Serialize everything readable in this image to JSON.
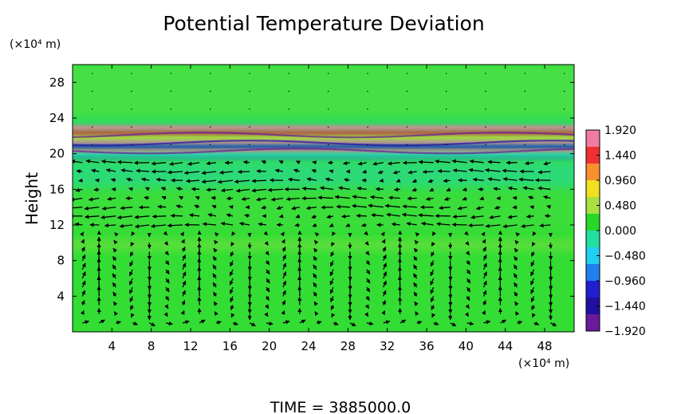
{
  "chart_data": {
    "type": "heatmap",
    "title": "Potential Temperature Deviation",
    "ylabel": "Height",
    "y_unit": "(×10⁴ m)",
    "x_unit": "(×10⁴ m)",
    "xlim": [
      0,
      51
    ],
    "ylim": [
      0,
      30
    ],
    "x_ticks": [
      4,
      8,
      12,
      16,
      20,
      24,
      28,
      32,
      36,
      40,
      44,
      48
    ],
    "y_ticks": [
      4,
      8,
      12,
      16,
      20,
      24,
      28
    ],
    "colorbar": {
      "ticks": [
        1.92,
        1.44,
        0.96,
        0.48,
        0.0,
        -0.48,
        -0.96,
        -1.44,
        -1.92
      ],
      "tick_labels": [
        "1.920",
        "1.440",
        "0.960",
        "0.480",
        "0.000",
        "−0.480",
        "−0.960",
        "−1.440",
        "−1.920"
      ],
      "range": [
        -1.92,
        1.92
      ],
      "colors_top_to_bottom": [
        "#f07ca0",
        "#ee3030",
        "#f89030",
        "#f0e020",
        "#a8e040",
        "#28d828",
        "#20e0a0",
        "#20d0f0",
        "#2080f0",
        "#2020d0",
        "#2010a0",
        "#6a1a9a"
      ]
    },
    "background_color": "#33dd33",
    "overlay": "velocity vector arrows",
    "annotation": "TIME = 3885000.0"
  }
}
